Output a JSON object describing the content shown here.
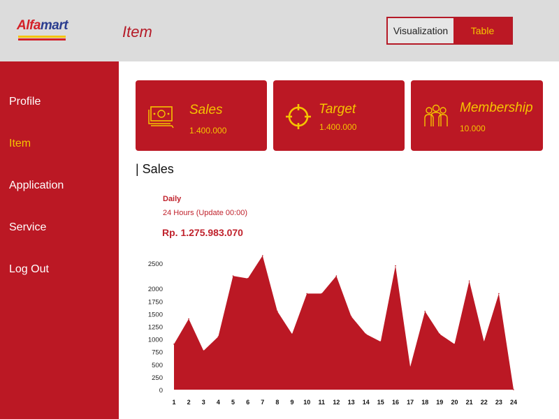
{
  "header": {
    "logo": {
      "part1": "Alfa",
      "part2": "mart"
    },
    "title": "Item",
    "view_toggle": {
      "visualization": "Visualization",
      "table": "Table",
      "active": "Table"
    }
  },
  "sidebar": {
    "items": [
      {
        "label": "Profile",
        "active": false
      },
      {
        "label": "Item",
        "active": true
      },
      {
        "label": "Application",
        "active": false
      },
      {
        "label": "Service",
        "active": false
      },
      {
        "label": "Log Out",
        "active": false
      }
    ]
  },
  "cards": [
    {
      "title": "Sales",
      "value": "1.400.000",
      "icon": "money-icon"
    },
    {
      "title": "Target",
      "value": "1.400.000",
      "icon": "target-icon"
    },
    {
      "title": "Membership",
      "value": "10.000",
      "icon": "people-icon"
    }
  ],
  "section": {
    "title": "| Sales"
  },
  "summary": {
    "period": "Daily",
    "note": "24 Hours (Update 00:00)",
    "amount": "Rp. 1.275.983.070"
  },
  "colors": {
    "brand_red": "#bb1824",
    "accent_yellow": "#f5c400",
    "header_gray": "#dcdcdc"
  },
  "chart_data": {
    "type": "area",
    "x": [
      "1",
      "2",
      "3",
      "4",
      "5",
      "6",
      "7",
      "8",
      "9",
      "10",
      "11",
      "12",
      "13",
      "14",
      "15",
      "16",
      "17",
      "18",
      "19",
      "20",
      "21",
      "22",
      "23",
      "24"
    ],
    "values": [
      900,
      1400,
      770,
      1050,
      2250,
      2200,
      2650,
      1550,
      1100,
      1900,
      1900,
      2250,
      1450,
      1100,
      950,
      2450,
      450,
      1550,
      1100,
      900,
      2150,
      950,
      1900,
      0
    ],
    "yticks": [
      0,
      250,
      500,
      750,
      1000,
      1250,
      1500,
      1750,
      2000,
      2500
    ],
    "ylim": [
      0,
      2500
    ],
    "color": "#bb1824"
  }
}
